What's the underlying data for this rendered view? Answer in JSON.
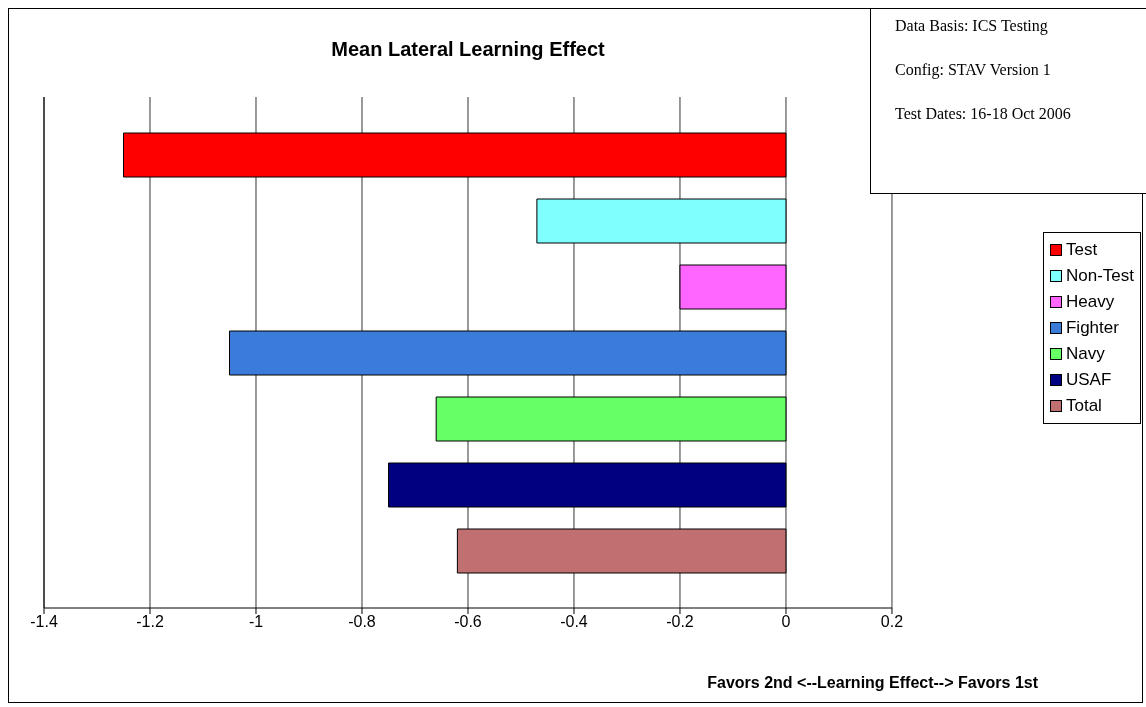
{
  "chart_data": {
    "type": "bar",
    "orientation": "horizontal",
    "title": "Mean Lateral Learning Effect",
    "xlabel": "Favors 2nd <--Learning Effect--> Favors 1st",
    "categories": [
      null
    ],
    "series": [
      {
        "name": "Test",
        "color": "#ff0000",
        "values": [
          -1.25
        ]
      },
      {
        "name": "Non-Test",
        "color": "#80ffff",
        "values": [
          -0.47
        ]
      },
      {
        "name": "Heavy",
        "color": "#ff66ff",
        "values": [
          -0.2
        ]
      },
      {
        "name": "Fighter",
        "color": "#3b7bd9",
        "values": [
          -1.05
        ]
      },
      {
        "name": "Navy",
        "color": "#66ff66",
        "values": [
          -0.66
        ]
      },
      {
        "name": "USAF",
        "color": "#000080",
        "values": [
          -0.75
        ]
      },
      {
        "name": "Total",
        "color": "#c07070",
        "values": [
          -0.62
        ]
      }
    ],
    "xlim": [
      -1.4,
      0.2
    ],
    "xticks": [
      -1.4,
      -1.2,
      -1,
      -0.8,
      -0.6,
      -0.4,
      -0.2,
      0,
      0.2
    ],
    "grid": "x",
    "legend": "right",
    "annotations": [
      "Data Basis: ICS Testing",
      "Config: STAV Version 1",
      "Test Dates: 16-18 Oct 2006"
    ]
  }
}
